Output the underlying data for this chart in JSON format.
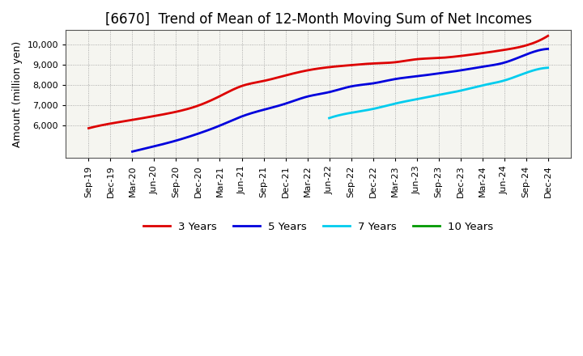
{
  "title": "[6670]  Trend of Mean of 12-Month Moving Sum of Net Incomes",
  "ylabel": "Amount (million yen)",
  "background_color": "#ffffff",
  "plot_bg_color": "#f5f5f0",
  "grid_color": "#999999",
  "x_labels": [
    "Sep-19",
    "Dec-19",
    "Mar-20",
    "Jun-20",
    "Sep-20",
    "Dec-20",
    "Mar-21",
    "Jun-21",
    "Sep-21",
    "Dec-21",
    "Mar-22",
    "Jun-22",
    "Sep-22",
    "Dec-22",
    "Mar-23",
    "Jun-23",
    "Sep-23",
    "Dec-23",
    "Mar-24",
    "Jun-24",
    "Sep-24",
    "Dec-24"
  ],
  "series": [
    {
      "label": "3 Years",
      "color": "#dd0000",
      "values": [
        5870,
        6100,
        6280,
        6470,
        6680,
        6980,
        7450,
        7950,
        8200,
        8470,
        8720,
        8880,
        8980,
        9060,
        9120,
        9270,
        9330,
        9430,
        9570,
        9730,
        9950,
        10420
      ]
    },
    {
      "label": "5 Years",
      "color": "#0000dd",
      "values": [
        null,
        null,
        4720,
        4980,
        5260,
        5600,
        6000,
        6450,
        6780,
        7080,
        7430,
        7650,
        7930,
        8080,
        8290,
        8430,
        8570,
        8720,
        8900,
        9100,
        9500,
        9780
      ]
    },
    {
      "label": "7 Years",
      "color": "#00ccee",
      "values": [
        null,
        null,
        null,
        null,
        null,
        null,
        null,
        null,
        null,
        null,
        null,
        6370,
        6630,
        6820,
        7080,
        7300,
        7510,
        7720,
        7980,
        8220,
        8600,
        8850
      ]
    },
    {
      "label": "10 Years",
      "color": "#009900",
      "values": [
        null,
        null,
        null,
        null,
        null,
        null,
        null,
        null,
        null,
        null,
        null,
        null,
        null,
        null,
        null,
        null,
        null,
        null,
        null,
        null,
        null,
        null
      ]
    }
  ],
  "ylim": [
    4400,
    10700
  ],
  "yticks": [
    6000,
    7000,
    8000,
    9000,
    10000
  ],
  "title_fontsize": 12,
  "axis_fontsize": 9,
  "tick_fontsize": 8,
  "legend_fontsize": 9.5
}
